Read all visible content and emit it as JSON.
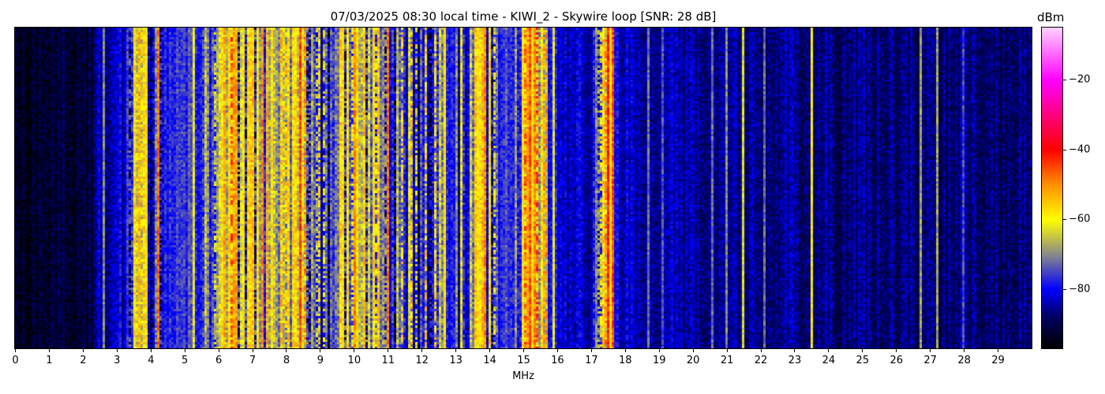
{
  "chart_data": {
    "type": "heatmap",
    "title": "07/03/2025 08:30 local time - KIWI_2 - Skywire loop [SNR: 28 dB]",
    "xlabel": "MHz",
    "ylabel": "",
    "xlim": [
      0,
      30
    ],
    "x_ticks": [
      "0",
      "1",
      "2",
      "3",
      "4",
      "5",
      "6",
      "7",
      "8",
      "9",
      "10",
      "11",
      "12",
      "13",
      "14",
      "15",
      "16",
      "17",
      "18",
      "19",
      "20",
      "21",
      "22",
      "23",
      "24",
      "25",
      "26",
      "27",
      "28",
      "29"
    ],
    "colorbar": {
      "label": "dBm",
      "range": [
        -97,
        -5
      ],
      "ticks": [
        "−20",
        "−40",
        "−60",
        "−80"
      ],
      "tick_values": [
        -20,
        -40,
        -60,
        -80
      ],
      "colormap": [
        {
          "dbm": -97,
          "color": "#000000"
        },
        {
          "dbm": -88,
          "color": "#000060"
        },
        {
          "dbm": -80,
          "color": "#0000ff"
        },
        {
          "dbm": -70,
          "color": "#8a8a8a"
        },
        {
          "dbm": -60,
          "color": "#ffff00"
        },
        {
          "dbm": -50,
          "color": "#ff9000"
        },
        {
          "dbm": -40,
          "color": "#ff0000"
        },
        {
          "dbm": -20,
          "color": "#ff00ff"
        },
        {
          "dbm": -5,
          "color": "#ffd0ff"
        }
      ]
    },
    "grid": false,
    "profile_step_mhz": 0.25,
    "mean_level_dbm": [
      -93,
      -93,
      -93,
      -92,
      -92,
      -92,
      -92,
      -91,
      -91,
      -91,
      -84,
      -84,
      -83,
      -82,
      -64,
      -66,
      -76,
      -75,
      -77,
      -76,
      -78,
      -76,
      -77,
      -72,
      -64,
      -60,
      -62,
      -66,
      -62,
      -64,
      -66,
      -62,
      -63,
      -60,
      -70,
      -75,
      -76,
      -74,
      -70,
      -66,
      -68,
      -70,
      -72,
      -68,
      -70,
      -72,
      -74,
      -75,
      -72,
      -76,
      -74,
      -77,
      -76,
      -73,
      -66,
      -65,
      -70,
      -76,
      -77,
      -78,
      -60,
      -58,
      -64,
      -78,
      -80,
      -82,
      -83,
      -83,
      -84,
      -60,
      -50,
      -82,
      -83,
      -83,
      -84,
      -84,
      -84,
      -84,
      -85,
      -85,
      -85,
      -85,
      -85,
      -85,
      -85,
      -85,
      -86,
      -86,
      -86,
      -86,
      -86,
      -86,
      -86,
      -86,
      -86,
      -86,
      -86,
      -87,
      -87,
      -87,
      -87,
      -87,
      -87,
      -87,
      -87,
      -87,
      -87,
      -87,
      -87,
      -87,
      -87,
      -87,
      -87,
      -87,
      -87,
      -87,
      -87,
      -87,
      -87,
      -87
    ],
    "carriers": [
      [
        2.6,
        -70
      ],
      [
        3.55,
        -58
      ],
      [
        3.9,
        -60
      ],
      [
        4.25,
        -48
      ],
      [
        5.25,
        -62
      ],
      [
        6.15,
        -58
      ],
      [
        6.4,
        -45
      ],
      [
        6.5,
        -52
      ],
      [
        7.0,
        -55
      ],
      [
        7.3,
        -50
      ],
      [
        7.6,
        -58
      ],
      [
        7.85,
        -55
      ],
      [
        8.1,
        -56
      ],
      [
        8.4,
        -45
      ],
      [
        8.55,
        -50
      ],
      [
        9.0,
        -58
      ],
      [
        9.6,
        -56
      ],
      [
        10.05,
        -50
      ],
      [
        10.3,
        -55
      ],
      [
        10.7,
        -55
      ],
      [
        11.0,
        -48
      ],
      [
        11.4,
        -58
      ],
      [
        11.7,
        -56
      ],
      [
        12.1,
        -56
      ],
      [
        12.4,
        -58
      ],
      [
        12.7,
        -58
      ],
      [
        13.6,
        -55
      ],
      [
        13.85,
        -50
      ],
      [
        14.0,
        -58
      ],
      [
        15.2,
        -50
      ],
      [
        15.4,
        -45
      ],
      [
        15.65,
        -52
      ],
      [
        15.9,
        -62
      ],
      [
        17.5,
        -42
      ],
      [
        17.65,
        -45
      ],
      [
        18.7,
        -72
      ],
      [
        19.1,
        -74
      ],
      [
        20.55,
        -72
      ],
      [
        21.0,
        -70
      ],
      [
        21.5,
        -62
      ],
      [
        22.1,
        -72
      ],
      [
        23.5,
        -60
      ],
      [
        26.7,
        -68
      ],
      [
        27.2,
        -68
      ],
      [
        28.0,
        -75
      ]
    ]
  }
}
